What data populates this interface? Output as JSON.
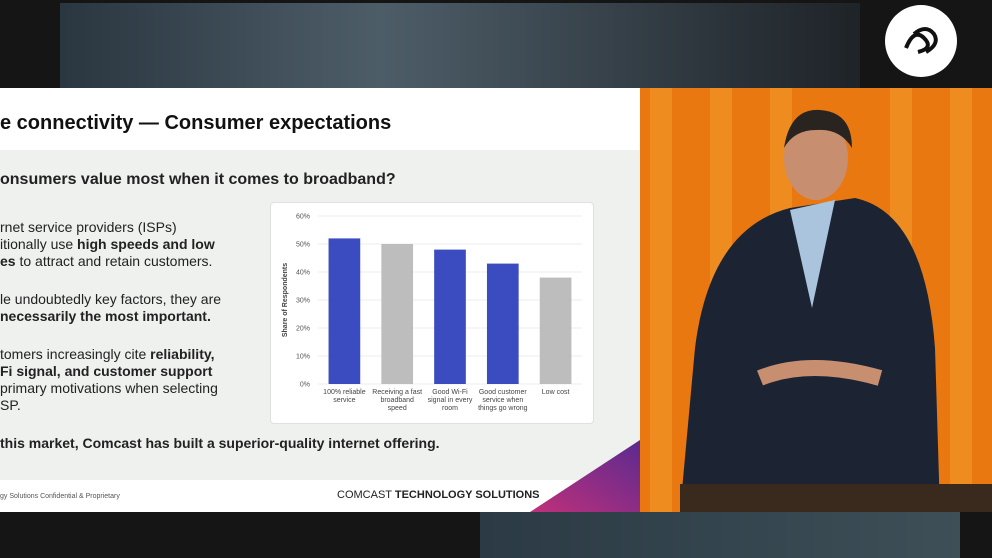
{
  "slide": {
    "title": "e connectivity — Consumer expectations",
    "question": "onsumers value most when it comes to broadband?",
    "bullets": [
      [
        [
          {
            "text": "rnet service providers (ISPs)"
          }
        ],
        [
          {
            "text": "itionally use "
          },
          {
            "text": "high speeds and low",
            "bold": true
          }
        ],
        [
          {
            "text": "es",
            "bold": true
          },
          {
            "text": " to attract and retain customers."
          }
        ]
      ],
      [
        [
          {
            "text": "le undoubtedly key factors, they are"
          }
        ],
        [
          {
            "text": "necessarily the most important.",
            "bold": true
          }
        ]
      ],
      [
        [
          {
            "text": "tomers increasingly cite "
          },
          {
            "text": "reliability,",
            "bold": true
          }
        ],
        [
          {
            "text": "Fi signal, and customer support",
            "bold": true
          }
        ],
        [
          {
            "text": "primary motivations when selecting"
          }
        ],
        [
          {
            "text": "SP."
          }
        ]
      ]
    ],
    "conclusion": "this market, Comcast has built a superior-quality internet offering.",
    "footer": "gy Solutions Confidential & Proprietary",
    "brand": "COMCAST",
    "brand_tagline": "TECHNOLOGY SOLUTIONS"
  },
  "chart_data": {
    "type": "bar",
    "ylabel": "Share of Respondents",
    "categories": [
      "100% reliable service",
      "Receiving a fast broadband speed",
      "Good Wi-Fi signal in every room",
      "Good customer service when things go wrong",
      "Low cost"
    ],
    "values": [
      52,
      50,
      48,
      43,
      38
    ],
    "colors": [
      "#3b4cc0",
      "#bdbdbd",
      "#3b4cc0",
      "#3b4cc0",
      "#bdbdbd"
    ],
    "ylim": [
      0,
      60
    ],
    "yticks": [
      {
        "value": 0,
        "label": "0%"
      },
      {
        "value": 10,
        "label": "10%"
      },
      {
        "value": 20,
        "label": "20%"
      },
      {
        "value": 30,
        "label": "30%"
      },
      {
        "value": 40,
        "label": "40%"
      },
      {
        "value": 50,
        "label": "50%"
      },
      {
        "value": 60,
        "label": "60%"
      }
    ]
  }
}
